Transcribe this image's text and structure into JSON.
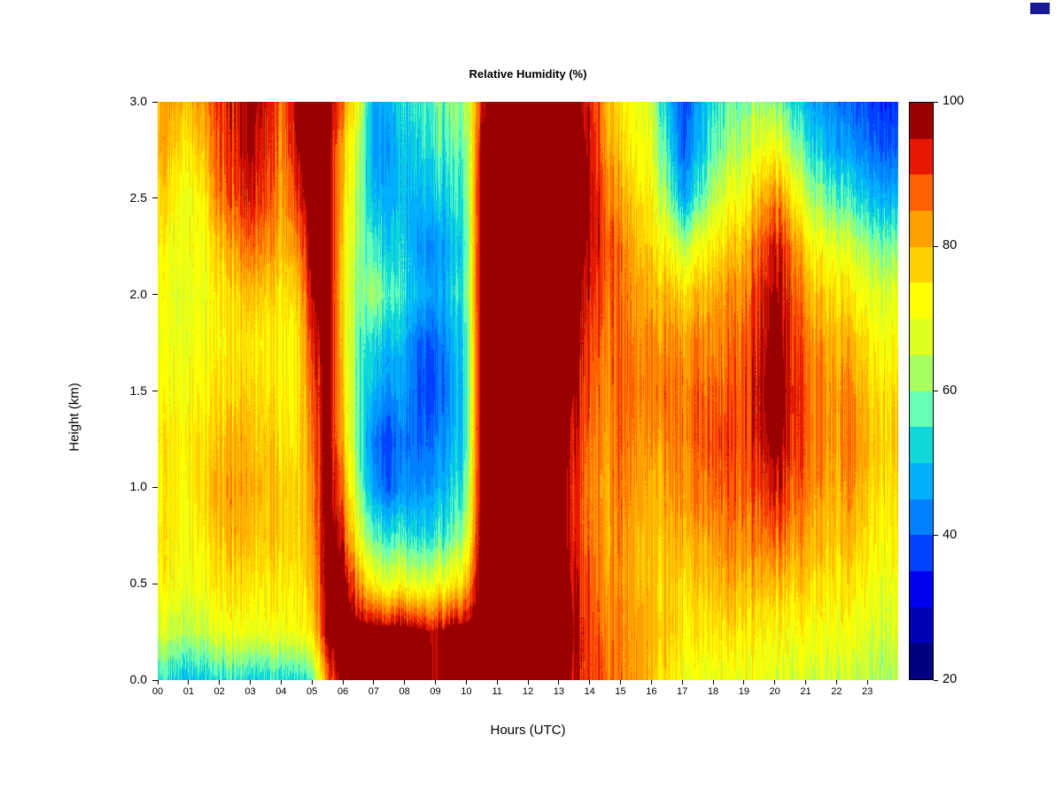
{
  "colors": {
    "background": "#ffffff",
    "corner_swatch": "#1a1a99",
    "axis": "#000000"
  },
  "chart_data": {
    "type": "heatmap",
    "title": "Relative Humidity (%)",
    "xlabel": "Hours (UTC)",
    "ylabel": "Height (km)",
    "x_range": [
      0,
      24
    ],
    "x_step": 0.5,
    "y_range": [
      0.0,
      3.0
    ],
    "x_ticks": [
      "00",
      "01",
      "02",
      "03",
      "04",
      "05",
      "06",
      "07",
      "08",
      "09",
      "10",
      "11",
      "12",
      "13",
      "14",
      "15",
      "16",
      "17",
      "18",
      "19",
      "20",
      "21",
      "22",
      "23"
    ],
    "y_ticks": [
      "0.0",
      "0.5",
      "1.0",
      "1.5",
      "2.0",
      "2.5",
      "3.0"
    ],
    "colorbar": {
      "min": 20,
      "max": 100,
      "ticks": [
        20,
        40,
        60,
        80,
        100
      ],
      "tick_labels": [
        "20",
        "40",
        "60",
        "80",
        "100"
      ],
      "colors": [
        "#000080",
        "#0000B8",
        "#0000F0",
        "#0040FF",
        "#0080FF",
        "#00B0FF",
        "#10D8D8",
        "#66FFB8",
        "#A8FF60",
        "#E0FF20",
        "#FFFF00",
        "#FFD000",
        "#FFA000",
        "#FF6000",
        "#E81800",
        "#9B0000"
      ]
    },
    "heights": [
      0.0,
      0.25,
      0.5,
      0.75,
      1.0,
      1.25,
      1.5,
      1.75,
      2.0,
      2.25,
      2.5,
      2.75,
      3.0
    ],
    "values": [
      [
        52,
        52,
        50,
        52,
        52,
        53,
        52,
        52,
        53,
        54,
        56,
        85,
        100,
        100,
        100,
        100,
        100,
        100,
        95,
        100,
        100,
        100,
        100,
        100,
        100,
        100,
        100,
        95,
        90,
        88,
        85,
        82,
        78,
        75,
        72,
        70,
        70,
        70,
        70,
        70,
        68,
        68,
        66,
        66,
        65,
        65,
        64,
        63
      ],
      [
        65,
        66,
        65,
        66,
        68,
        70,
        70,
        70,
        70,
        72,
        75,
        98,
        100,
        100,
        100,
        100,
        100,
        98,
        95,
        100,
        100,
        100,
        100,
        100,
        100,
        100,
        100,
        96,
        90,
        86,
        85,
        82,
        80,
        78,
        76,
        75,
        76,
        76,
        75,
        74,
        72,
        72,
        72,
        70,
        70,
        70,
        68,
        67
      ],
      [
        70,
        72,
        70,
        72,
        74,
        75,
        76,
        75,
        75,
        76,
        80,
        100,
        100,
        85,
        72,
        70,
        70,
        68,
        70,
        72,
        80,
        100,
        100,
        100,
        100,
        100,
        100,
        95,
        88,
        84,
        84,
        80,
        78,
        78,
        78,
        78,
        80,
        82,
        80,
        80,
        80,
        78,
        78,
        75,
        74,
        75,
        72,
        70
      ],
      [
        72,
        74,
        72,
        75,
        78,
        80,
        80,
        78,
        78,
        78,
        82,
        100,
        92,
        70,
        56,
        55,
        54,
        52,
        54,
        56,
        65,
        100,
        100,
        100,
        100,
        100,
        100,
        92,
        86,
        82,
        85,
        80,
        78,
        80,
        82,
        82,
        84,
        86,
        85,
        86,
        88,
        85,
        82,
        80,
        78,
        80,
        76,
        74
      ],
      [
        70,
        75,
        73,
        78,
        80,
        82,
        82,
        80,
        78,
        78,
        84,
        100,
        85,
        62,
        45,
        40,
        44,
        44,
        46,
        50,
        58,
        100,
        100,
        100,
        100,
        100,
        100,
        92,
        85,
        82,
        86,
        82,
        80,
        82,
        85,
        86,
        88,
        88,
        88,
        90,
        95,
        90,
        86,
        82,
        80,
        84,
        78,
        76
      ],
      [
        72,
        74,
        75,
        76,
        78,
        80,
        80,
        78,
        76,
        76,
        86,
        100,
        80,
        58,
        42,
        38,
        42,
        40,
        42,
        46,
        55,
        100,
        100,
        100,
        100,
        100,
        100,
        94,
        86,
        83,
        88,
        84,
        82,
        85,
        86,
        88,
        90,
        90,
        90,
        94,
        98,
        94,
        88,
        84,
        82,
        86,
        80,
        78
      ],
      [
        70,
        72,
        72,
        74,
        75,
        76,
        78,
        76,
        74,
        75,
        88,
        100,
        78,
        58,
        48,
        45,
        45,
        38,
        38,
        44,
        54,
        100,
        100,
        100,
        100,
        100,
        100,
        96,
        88,
        85,
        88,
        85,
        84,
        86,
        86,
        88,
        88,
        88,
        90,
        95,
        99,
        95,
        88,
        84,
        82,
        84,
        78,
        76
      ],
      [
        68,
        70,
        70,
        72,
        72,
        74,
        76,
        74,
        73,
        75,
        92,
        100,
        76,
        58,
        52,
        50,
        48,
        40,
        40,
        46,
        55,
        100,
        100,
        100,
        100,
        100,
        100,
        98,
        90,
        86,
        88,
        84,
        84,
        84,
        84,
        85,
        85,
        86,
        88,
        94,
        98,
        94,
        86,
        82,
        80,
        80,
        75,
        72
      ],
      [
        70,
        68,
        70,
        70,
        74,
        76,
        80,
        78,
        75,
        78,
        96,
        100,
        75,
        60,
        62,
        58,
        52,
        48,
        46,
        50,
        58,
        100,
        100,
        100,
        100,
        100,
        100,
        100,
        92,
        88,
        87,
        82,
        80,
        80,
        78,
        80,
        82,
        84,
        85,
        92,
        97,
        92,
        82,
        78,
        75,
        74,
        70,
        68
      ],
      [
        72,
        70,
        72,
        72,
        78,
        82,
        88,
        85,
        80,
        85,
        99,
        100,
        76,
        62,
        55,
        52,
        50,
        45,
        44,
        48,
        56,
        100,
        100,
        100,
        100,
        100,
        100,
        100,
        95,
        90,
        86,
        80,
        76,
        72,
        65,
        70,
        75,
        78,
        80,
        88,
        94,
        88,
        76,
        70,
        68,
        66,
        62,
        60
      ],
      [
        75,
        74,
        70,
        75,
        85,
        88,
        95,
        90,
        82,
        92,
        100,
        100,
        78,
        62,
        48,
        48,
        48,
        48,
        50,
        52,
        58,
        100,
        100,
        100,
        100,
        100,
        100,
        100,
        96,
        88,
        82,
        76,
        72,
        62,
        48,
        55,
        65,
        70,
        72,
        80,
        85,
        78,
        65,
        60,
        56,
        54,
        50,
        48
      ],
      [
        80,
        78,
        75,
        80,
        88,
        92,
        97,
        93,
        85,
        96,
        100,
        100,
        80,
        65,
        45,
        46,
        50,
        52,
        55,
        56,
        60,
        96,
        100,
        100,
        100,
        100,
        100,
        100,
        95,
        85,
        78,
        72,
        68,
        55,
        40,
        48,
        58,
        62,
        65,
        70,
        72,
        65,
        55,
        50,
        46,
        45,
        42,
        40
      ],
      [
        78,
        82,
        80,
        85,
        90,
        92,
        97,
        95,
        86,
        98,
        100,
        100,
        85,
        70,
        46,
        48,
        52,
        55,
        58,
        60,
        62,
        92,
        100,
        100,
        100,
        100,
        100,
        100,
        92,
        82,
        75,
        70,
        66,
        50,
        38,
        45,
        55,
        58,
        60,
        62,
        60,
        55,
        48,
        45,
        42,
        40,
        38,
        36
      ]
    ]
  }
}
